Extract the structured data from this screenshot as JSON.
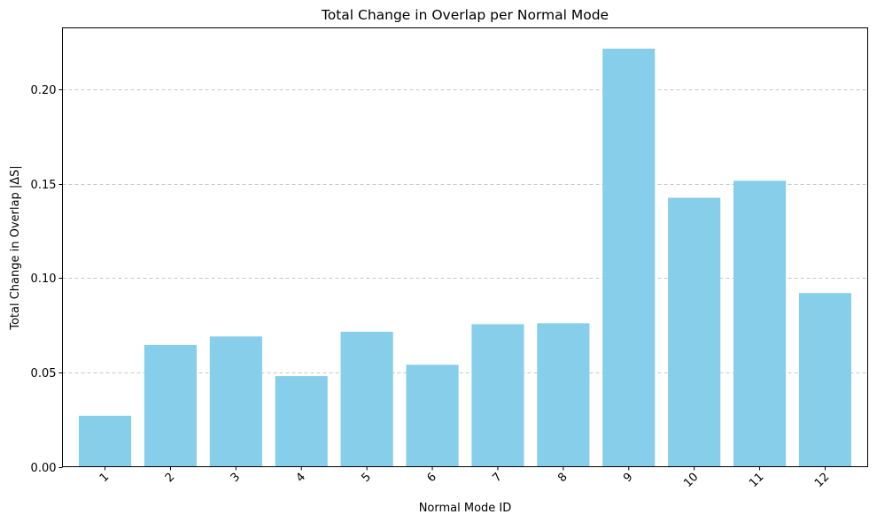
{
  "chart_data": {
    "type": "bar",
    "title": "Total Change in Overlap per Normal Mode",
    "xlabel": "Normal Mode ID",
    "ylabel": "Total Change in Overlap |ΔS|",
    "categories": [
      "1",
      "2",
      "3",
      "4",
      "5",
      "6",
      "7",
      "8",
      "9",
      "10",
      "11",
      "12"
    ],
    "values": [
      0.027,
      0.0645,
      0.069,
      0.048,
      0.0715,
      0.054,
      0.0755,
      0.076,
      0.2215,
      0.1425,
      0.1515,
      0.092
    ],
    "ylim": [
      0,
      0.2325
    ],
    "yticks": [
      0.0,
      0.05,
      0.1,
      0.15,
      0.2
    ],
    "ytick_labels": [
      "0.00",
      "0.05",
      "0.10",
      "0.15",
      "0.20"
    ],
    "grid": "y-dashed",
    "bar_color": "#87ceeb",
    "grid_color": "#c8c8c8"
  }
}
